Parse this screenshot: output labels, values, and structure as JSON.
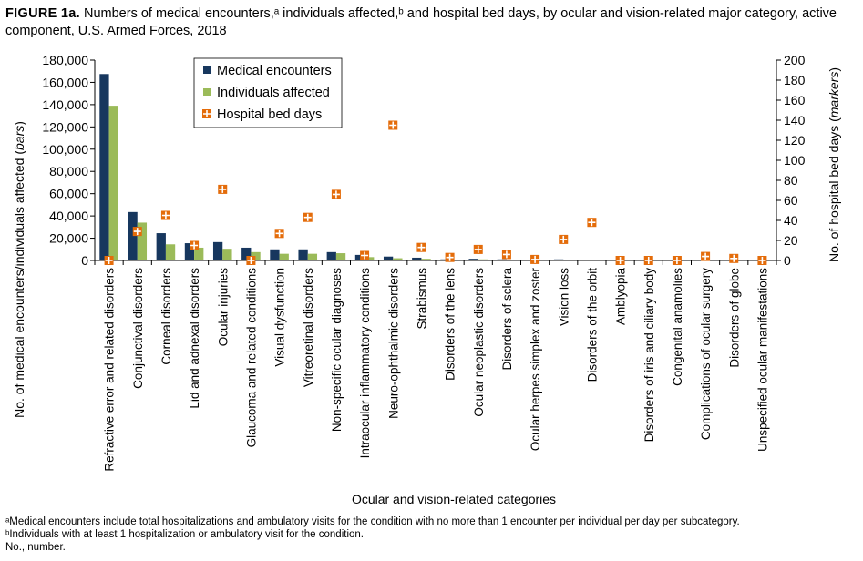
{
  "chart_data": {
    "type": "combo",
    "title_label": "FIGURE 1a.",
    "title": "Numbers of medical encounters,ᵃ individuals affected,ᵇ and hospital bed days, by ocular and vision-related major category, active component, U.S. Armed Forces, 2018",
    "ylabel": [
      "No. of medical encounters/individuals affected (",
      "bars",
      ")"
    ],
    "y2label": [
      "No. of hospital bed days (",
      "markers",
      ")"
    ],
    "xlabel": "Ocular and vision-related categories",
    "categories": [
      "Refractive error and related disorders",
      "Conjunctival disorders",
      "Corneal disorders",
      "Lid and adnexal disorders",
      "Ocular injuries",
      "Glaucoma and related conditions",
      "Visual dysfunction",
      "Vitreoretinal disorders",
      "Non-specific ocular diagnoses",
      "Intraocular inflammatory conditions",
      "Neuro-ophthalmic disorders",
      "Strabismus",
      "Disorders of the lens",
      "Ocular neoplastic disorders",
      "Disorders of sclera",
      "Ocular herpes simplex and zoster",
      "Vision loss",
      "Disorders of the orbit",
      "Amblyopia",
      "Disorders of iris and ciliary body",
      "Congenital anamolies",
      "Complications of ocular surgery",
      "Disorders of globe",
      "Unspecified ocular manifestations"
    ],
    "series": [
      {
        "name": "Medical encounters",
        "type": "bar",
        "color": "#17375e",
        "values": [
          167500,
          43500,
          24500,
          15500,
          16500,
          11500,
          10000,
          10000,
          7500,
          5000,
          3500,
          2500,
          1000,
          1500,
          1000,
          500,
          1000,
          800,
          300,
          200,
          200,
          200,
          100,
          100
        ]
      },
      {
        "name": "Individuals affected",
        "type": "bar",
        "color": "#9bbb59",
        "values": [
          139000,
          34000,
          14500,
          11500,
          10500,
          7500,
          6000,
          6000,
          6500,
          3000,
          2000,
          1500,
          600,
          1000,
          600,
          300,
          600,
          500,
          200,
          100,
          100,
          100,
          50,
          50
        ]
      },
      {
        "name": "Hospital bed days",
        "type": "marker",
        "axis": "y2",
        "color": "#e46c0a",
        "values": [
          0,
          29,
          45,
          15,
          71,
          0,
          27,
          43,
          66,
          5,
          135,
          13,
          3,
          11,
          6,
          1,
          21,
          38,
          0,
          0,
          0,
          4,
          2,
          0
        ]
      }
    ],
    "ylim": [
      0,
      180000
    ],
    "yticks": [
      0,
      {
        "value": 20000,
        "label": "20,000"
      },
      {
        "value": 40000,
        "label": "40,000"
      },
      {
        "value": 60000,
        "label": "60,000"
      },
      {
        "value": 80000,
        "label": "80,000"
      },
      {
        "value": 100000,
        "label": "100,000"
      },
      {
        "value": 120000,
        "label": "120,000"
      },
      {
        "value": 140000,
        "label": "140,000"
      },
      {
        "value": 160000,
        "label": "160,000"
      },
      {
        "value": 180000,
        "label": "180,000"
      }
    ],
    "y2lim": [
      0,
      200
    ],
    "y2ticks": [
      0,
      20,
      40,
      60,
      80,
      100,
      120,
      140,
      160,
      180,
      200
    ],
    "footnotes": [
      "ᵃMedical encounters include total hospitalizations and ambulatory visits for the condition with no more than 1 encounter per individual per day per subcategory.",
      "ᵇIndividuals with at least 1 hospitalization or ambulatory visit for the condition.",
      "No., number."
    ]
  }
}
